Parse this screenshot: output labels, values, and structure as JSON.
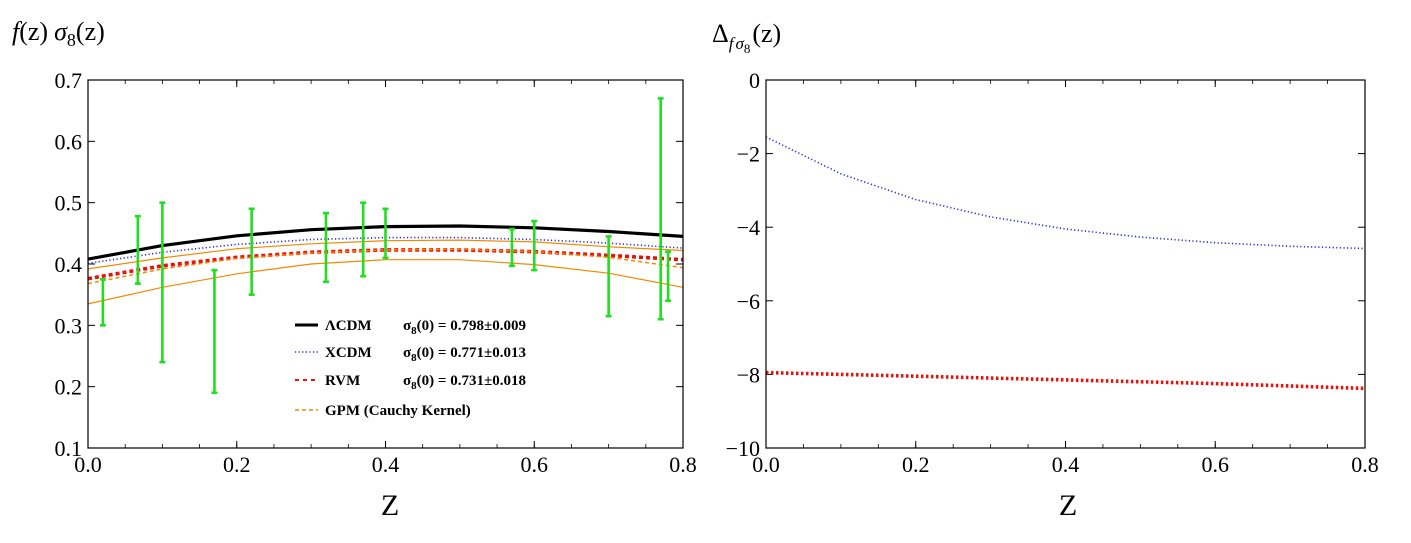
{
  "chart_data": [
    {
      "type": "line",
      "ylabel_parts": {
        "f": "f",
        "z_paren": "(z)",
        "sigma": "σ",
        "sub": "8",
        "z_paren2": "(z)"
      },
      "xlabel": "Z",
      "xlim": [
        0.0,
        0.8
      ],
      "ylim": [
        0.1,
        0.7
      ],
      "xticks": [
        "0.0",
        "0.2",
        "0.4",
        "0.6",
        "0.8"
      ],
      "yticks": [
        "0.1",
        "0.2",
        "0.3",
        "0.4",
        "0.5",
        "0.6",
        "0.7"
      ],
      "xtick_values": [
        0.0,
        0.2,
        0.4,
        0.6,
        0.8
      ],
      "ytick_values": [
        0.1,
        0.2,
        0.3,
        0.4,
        0.5,
        0.6,
        0.7
      ],
      "series": [
        {
          "name": "ΛCDM",
          "sigma_label": "σ",
          "sigma_sub": "8",
          "sigma_text": "(0) = 0.798±0.009",
          "color": "#000000",
          "style": "solid-thick",
          "x": [
            0.0,
            0.1,
            0.2,
            0.3,
            0.4,
            0.5,
            0.6,
            0.7,
            0.8
          ],
          "y": [
            0.408,
            0.43,
            0.446,
            0.456,
            0.461,
            0.462,
            0.459,
            0.453,
            0.445
          ]
        },
        {
          "name": "XCDM",
          "sigma_label": "σ",
          "sigma_sub": "8",
          "sigma_text": "(0) = 0.771±0.013",
          "color": "#2b2bd9",
          "style": "dotted",
          "x": [
            0.0,
            0.1,
            0.2,
            0.3,
            0.4,
            0.5,
            0.6,
            0.7,
            0.8
          ],
          "y": [
            0.401,
            0.419,
            0.432,
            0.44,
            0.443,
            0.443,
            0.44,
            0.434,
            0.426
          ]
        },
        {
          "name": "RVM",
          "sigma_label": "σ",
          "sigma_sub": "8",
          "sigma_text": "(0) = 0.731±0.018",
          "color": "#e8120c",
          "style": "dashed-thick",
          "x": [
            0.0,
            0.1,
            0.2,
            0.3,
            0.4,
            0.5,
            0.6,
            0.7,
            0.8
          ],
          "y": [
            0.376,
            0.397,
            0.411,
            0.419,
            0.423,
            0.423,
            0.42,
            0.414,
            0.407
          ]
        },
        {
          "name": "GPM (Cauchy Kernel)",
          "sigma_label": "",
          "sigma_sub": "",
          "sigma_text": "",
          "color": "#f28a00",
          "style": "dashed",
          "x": [
            0.0,
            0.1,
            0.2,
            0.3,
            0.4,
            0.5,
            0.6,
            0.7,
            0.8
          ],
          "y": [
            0.368,
            0.392,
            0.409,
            0.418,
            0.423,
            0.424,
            0.42,
            0.411,
            0.394
          ]
        }
      ],
      "gpm_band": {
        "color": "#f28a00",
        "x": [
          0.0,
          0.1,
          0.2,
          0.3,
          0.4,
          0.5,
          0.6,
          0.7,
          0.8
        ],
        "upper": [
          0.392,
          0.41,
          0.425,
          0.433,
          0.438,
          0.439,
          0.436,
          0.428,
          0.422
        ],
        "lower": [
          0.335,
          0.362,
          0.384,
          0.4,
          0.407,
          0.407,
          0.399,
          0.385,
          0.362
        ]
      },
      "errorbars": {
        "color": "#22dd22",
        "points": [
          {
            "x": 0.02,
            "y": 0.337,
            "lo": 0.3,
            "hi": 0.375
          },
          {
            "x": 0.067,
            "y": 0.423,
            "lo": 0.368,
            "hi": 0.478
          },
          {
            "x": 0.1,
            "y": 0.37,
            "lo": 0.24,
            "hi": 0.5
          },
          {
            "x": 0.17,
            "y": 0.29,
            "lo": 0.19,
            "hi": 0.39
          },
          {
            "x": 0.22,
            "y": 0.42,
            "lo": 0.35,
            "hi": 0.49
          },
          {
            "x": 0.32,
            "y": 0.427,
            "lo": 0.371,
            "hi": 0.483
          },
          {
            "x": 0.37,
            "y": 0.44,
            "lo": 0.38,
            "hi": 0.5
          },
          {
            "x": 0.4,
            "y": 0.45,
            "lo": 0.41,
            "hi": 0.49
          },
          {
            "x": 0.57,
            "y": 0.427,
            "lo": 0.397,
            "hi": 0.457
          },
          {
            "x": 0.6,
            "y": 0.43,
            "lo": 0.39,
            "hi": 0.47
          },
          {
            "x": 0.7,
            "y": 0.38,
            "lo": 0.315,
            "hi": 0.445
          },
          {
            "x": 0.77,
            "y": 0.49,
            "lo": 0.31,
            "hi": 0.67
          },
          {
            "x": 0.78,
            "y": 0.38,
            "lo": 0.34,
            "hi": 0.42
          }
        ]
      },
      "legend_position": "lower-center"
    },
    {
      "type": "line",
      "ylabel_parts": {
        "delta": "Δ",
        "sub_f": "f",
        "sub_sigma": "σ",
        "sub_8": "8",
        "z_paren": "(z)"
      },
      "xlabel": "Z",
      "xlim": [
        0.0,
        0.8
      ],
      "ylim": [
        -10,
        0
      ],
      "xticks": [
        "0.0",
        "0.2",
        "0.4",
        "0.6",
        "0.8"
      ],
      "yticks": [
        "−10",
        "−8",
        "−6",
        "−4",
        "−2",
        "0"
      ],
      "xtick_values": [
        0.0,
        0.2,
        0.4,
        0.6,
        0.8
      ],
      "ytick_values": [
        -10,
        -8,
        -6,
        -4,
        -2,
        0
      ],
      "series": [
        {
          "name": "XCDM",
          "color": "#2b2bd9",
          "style": "dotted",
          "x": [
            0.0,
            0.1,
            0.2,
            0.3,
            0.4,
            0.5,
            0.6,
            0.7,
            0.8
          ],
          "y": [
            -1.55,
            -2.55,
            -3.25,
            -3.72,
            -4.05,
            -4.27,
            -4.42,
            -4.52,
            -4.58
          ]
        },
        {
          "name": "RVM",
          "color": "#e8120c",
          "style": "dotted-thick",
          "x": [
            0.0,
            0.2,
            0.4,
            0.6,
            0.8
          ],
          "y": [
            -7.95,
            -8.05,
            -8.15,
            -8.25,
            -8.38
          ]
        }
      ]
    }
  ]
}
